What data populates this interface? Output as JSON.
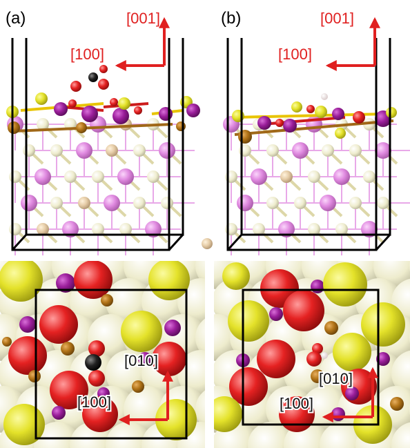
{
  "panels": [
    {
      "label": "(a)",
      "side_view": {
        "axis_vertical": "[001]",
        "axis_horizontal": "[100]"
      },
      "top_view": {
        "axis_vertical": "[010]",
        "axis_horizontal": "[100]"
      }
    },
    {
      "label": "(b)",
      "side_view": {
        "axis_vertical": "[001]",
        "axis_horizontal": "[100]"
      },
      "top_view": {
        "axis_vertical": "[010]",
        "axis_horizontal": "[100]"
      }
    }
  ]
}
